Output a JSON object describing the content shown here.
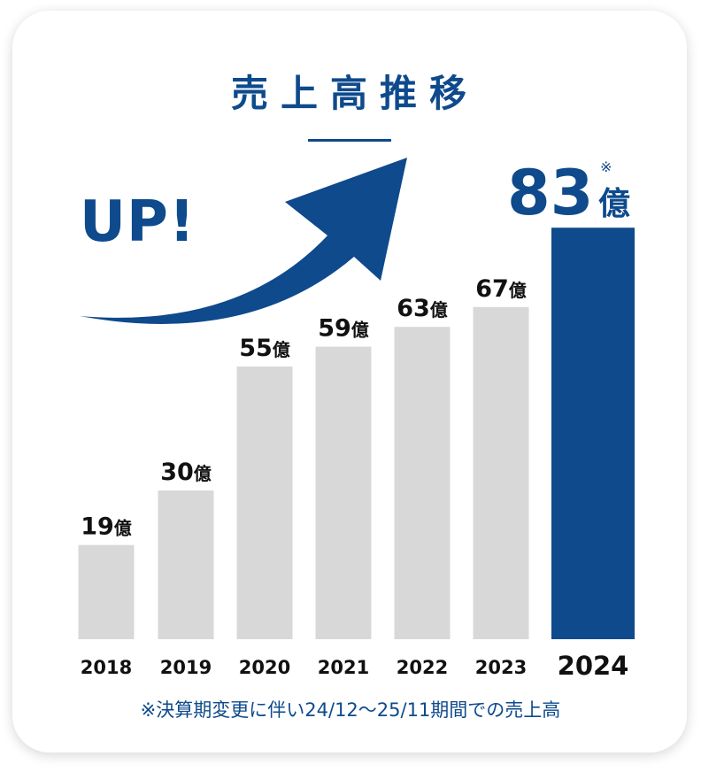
{
  "title": "売上高推移",
  "up_label": "UP!",
  "unit": "億",
  "highlight_mark": "※",
  "footnote": "※決算期変更に伴い24/12〜25/11期間での売上高",
  "colors": {
    "accent": "#0e4a8c",
    "bar_default": "#d8d8d8",
    "text": "#111111"
  },
  "chart_data": {
    "type": "bar",
    "title": "売上高推移",
    "categories": [
      "2018",
      "2019",
      "2020",
      "2021",
      "2022",
      "2023",
      "2024"
    ],
    "values": [
      19,
      30,
      55,
      59,
      63,
      67,
      83
    ],
    "value_labels": [
      "19億",
      "30億",
      "55億",
      "59億",
      "63億",
      "67億",
      "83億"
    ],
    "highlight_category": "2024",
    "xlabel": "",
    "ylabel": "",
    "grid": false,
    "legend": "none"
  }
}
